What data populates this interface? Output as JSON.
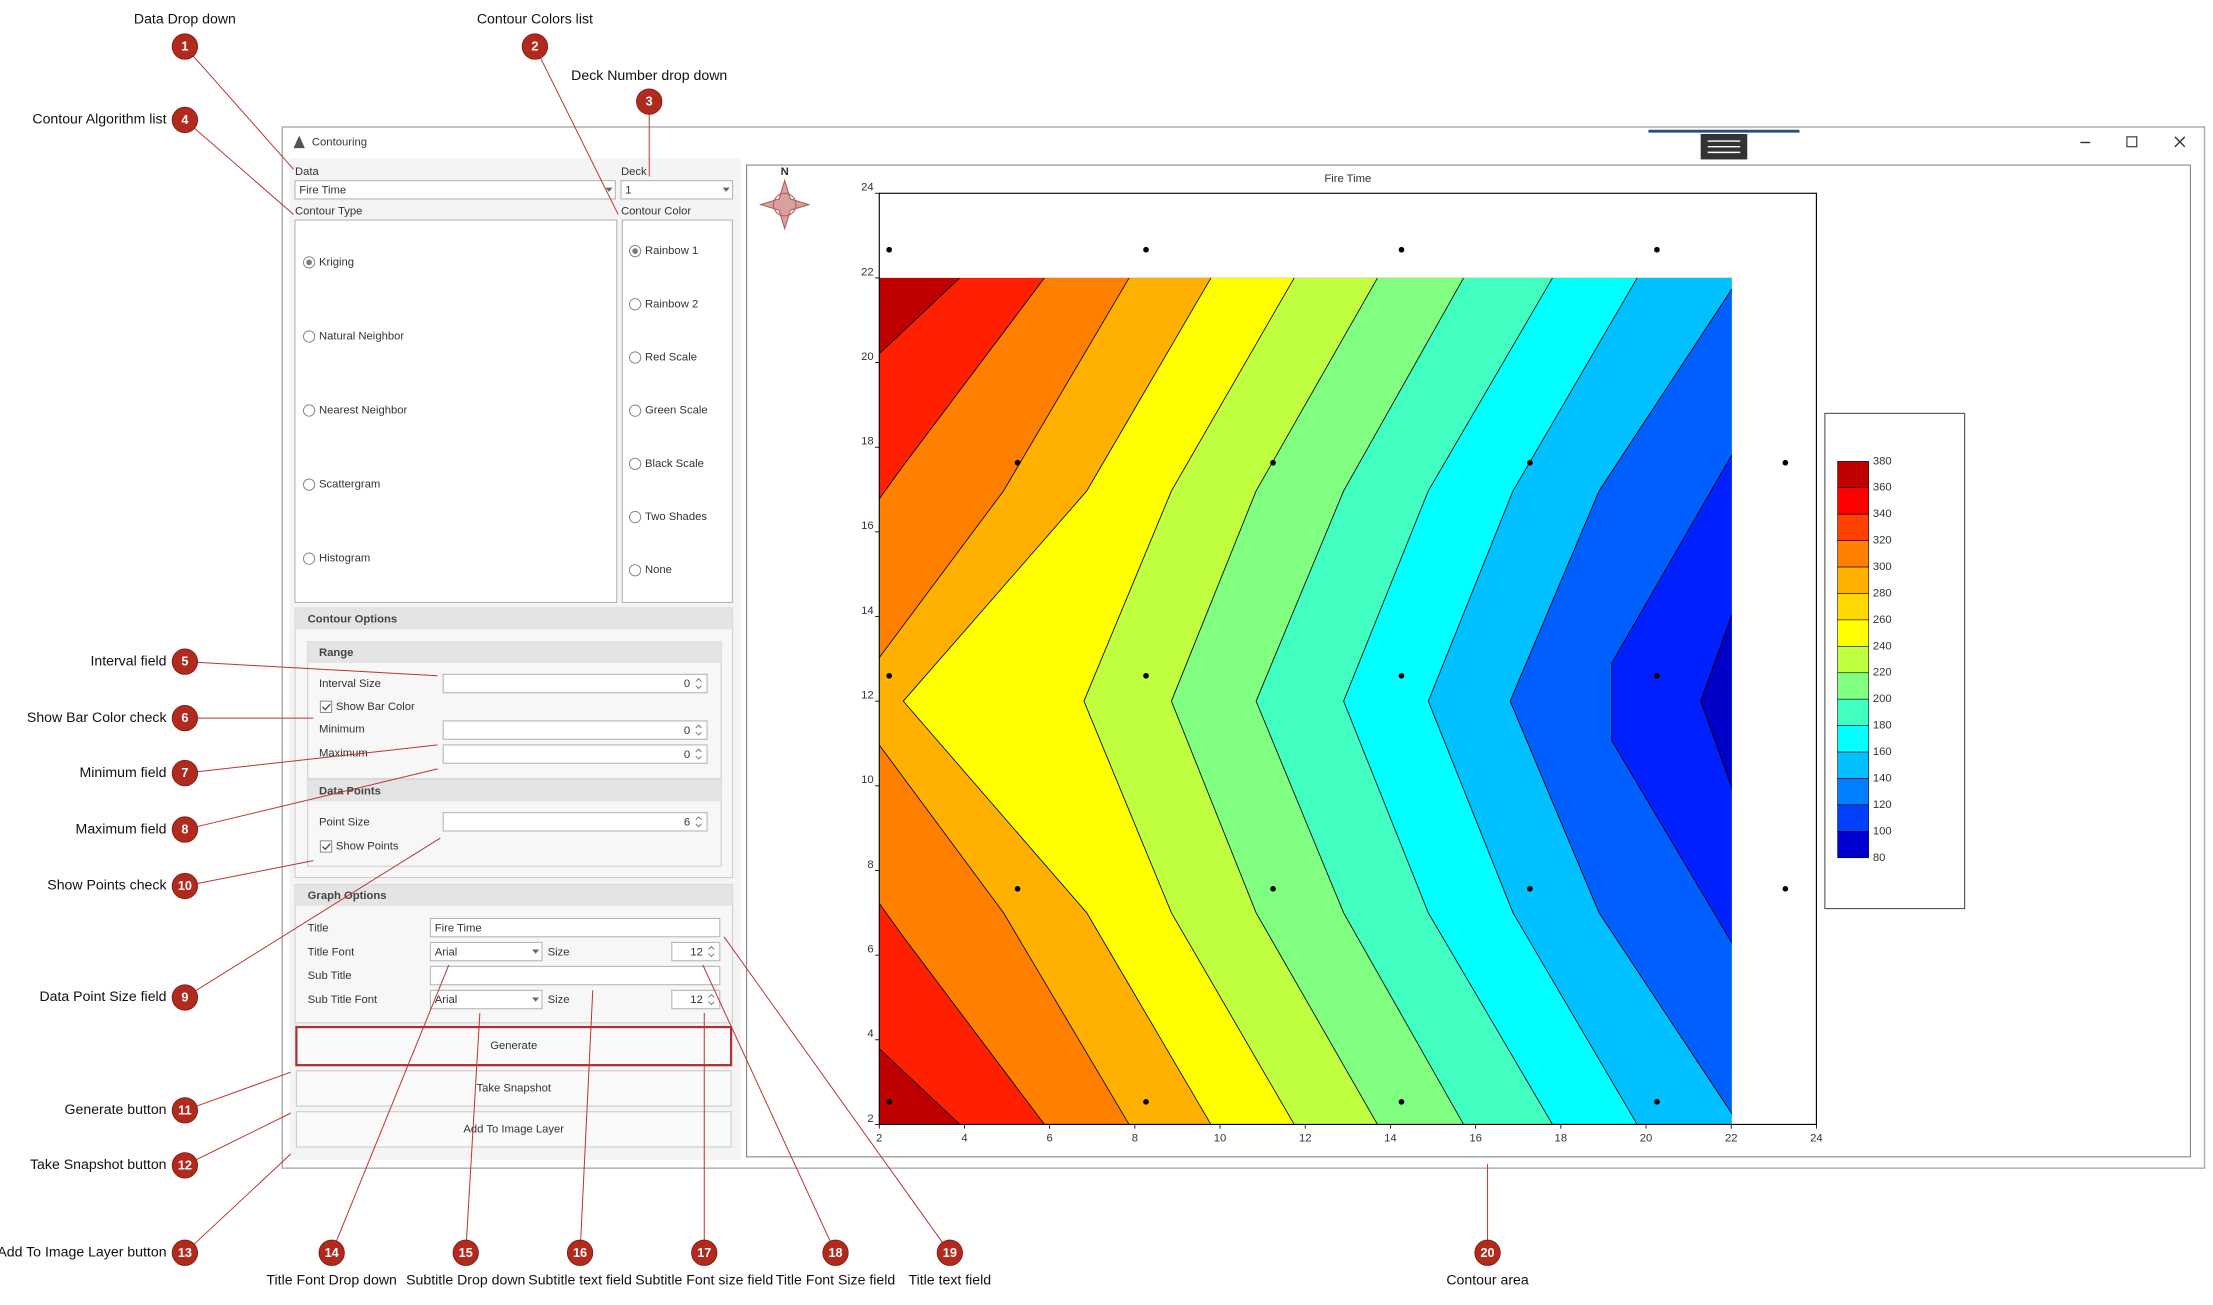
{
  "callouts": [
    {
      "number": "1",
      "label": "Data Drop down"
    },
    {
      "number": "2",
      "label": "Contour Colors list"
    },
    {
      "number": "3",
      "label": "Deck Number drop down"
    },
    {
      "number": "4",
      "label": "Contour Algorithm list"
    },
    {
      "number": "5",
      "label": "Interval field"
    },
    {
      "number": "6",
      "label": "Show Bar Color check"
    },
    {
      "number": "7",
      "label": "Minimum field"
    },
    {
      "number": "8",
      "label": "Maximum field"
    },
    {
      "number": "9",
      "label": "Data Point Size field"
    },
    {
      "number": "10",
      "label": "Show Points check"
    },
    {
      "number": "11",
      "label": "Generate button"
    },
    {
      "number": "12",
      "label": "Take Snapshot button"
    },
    {
      "number": "13",
      "label": "Add To Image Layer button"
    },
    {
      "number": "14",
      "label": "Title Font Drop down"
    },
    {
      "number": "15",
      "label": "Subtitle Drop down"
    },
    {
      "number": "16",
      "label": "Subtitle text field"
    },
    {
      "number": "17",
      "label": "Subtitle Font size field"
    },
    {
      "number": "18",
      "label": "Title Font Size field"
    },
    {
      "number": "19",
      "label": "Title text field"
    },
    {
      "number": "20",
      "label": "Contour area"
    }
  ],
  "window": {
    "title": "Contouring"
  },
  "panel": {
    "data_label": "Data",
    "data_value": "Fire Time",
    "deck_label": "Deck",
    "deck_value": "1",
    "contour_type_label": "Contour Type",
    "contour_types": [
      "Kriging",
      "Natural Neighbor",
      "Nearest Neighbor",
      "Scattergram",
      "Histogram"
    ],
    "contour_color_label": "Contour Color",
    "contour_colors": [
      "Rainbow 1",
      "Rainbow 2",
      "Red Scale",
      "Green Scale",
      "Black Scale",
      "Two Shades",
      "None"
    ],
    "contour_options": {
      "header": "Contour Options",
      "range_header": "Range",
      "interval_label": "Interval Size",
      "interval_value": "0",
      "show_bar_color": "Show Bar Color",
      "minimum_label": "Minimum",
      "minimum_value": "0",
      "maximum_label": "Maximum",
      "maximum_value": "0",
      "data_points_header": "Data Points",
      "point_size_label": "Point Size",
      "point_size_value": "6",
      "show_points": "Show Points"
    },
    "graph_options": {
      "header": "Graph Options",
      "title_label": "Title",
      "title_value": "Fire Time",
      "title_font_label": "Title Font",
      "title_font_value": "Arial",
      "size_label": "Size",
      "title_size_value": "12",
      "sub_title_label": "Sub Title",
      "sub_title_font_label": "Sub Title Font",
      "sub_title_font_value": "Arial",
      "sub_title_size_label": "Size",
      "sub_title_size_value": "12"
    },
    "buttons": [
      "Generate",
      "Take Snapshot",
      "Add To Image Layer"
    ]
  },
  "plot": {
    "title": "Fire Time",
    "compass": "N",
    "xticks": [
      2,
      4,
      6,
      8,
      10,
      12,
      14,
      16,
      18,
      20,
      22,
      24
    ],
    "yticks": [
      2,
      4,
      6,
      8,
      10,
      12,
      14,
      16,
      18,
      20,
      22,
      24
    ],
    "legend": [
      380,
      360,
      340,
      320,
      300,
      280,
      260,
      240,
      220,
      200,
      180,
      160,
      140,
      120,
      100,
      80
    ]
  }
}
